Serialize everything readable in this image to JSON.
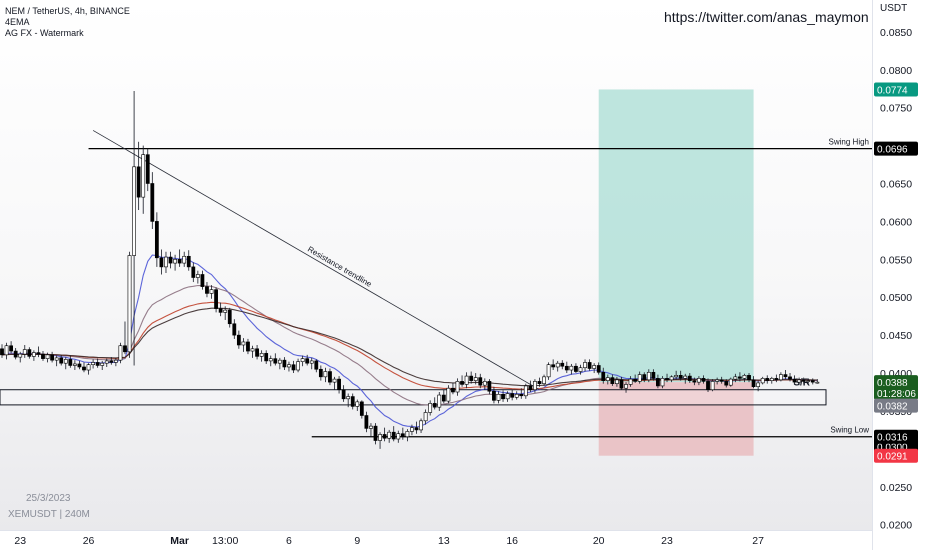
{
  "header": {
    "symbol_line": "NEM / TetherUS, 4h, BINANCE",
    "indicator_1": "4EMA",
    "indicator_2": "AG FX - Watermark"
  },
  "watermark": {
    "url": "https://twitter.com/anas_maymon",
    "date": "25/3/2023",
    "ticker": "XEMUSDT | 240M"
  },
  "colors": {
    "up": "#ffffff",
    "down": "#000000",
    "wick": "#131722",
    "target_zone": "#b3e0d8",
    "stop_zone": "#e8b9bd",
    "ema_fast": "#4b55d6",
    "ema_2": "#8c7080",
    "ema_3": "#c0412b",
    "ema_4": "#3a2a2a",
    "label_green": "#089981",
    "label_red": "#f23645",
    "label_gray": "#787b86",
    "label_black": "#000000",
    "label_darkgreen": "#1b5e20"
  },
  "chart_data": {
    "type": "candlestick",
    "symbol": "NEM / TetherUS",
    "interval": "4h",
    "exchange": "BINANCE",
    "y_unit": "USDT",
    "y_range": [
      0.0193,
      0.0892
    ],
    "y_ticks": [
      "0.0200",
      "0.0250",
      "0.0300",
      "0.0350",
      "0.0400",
      "0.0450",
      "0.0500",
      "0.0550",
      "0.0600",
      "0.0650",
      "0.0700",
      "0.0750",
      "0.0800",
      "0.0850"
    ],
    "x_ticks": [
      "23",
      "26",
      "Mar",
      "13:00",
      "6",
      "9",
      "13",
      "16",
      "20",
      "23",
      "27"
    ],
    "x_domain": [
      0,
      191
    ],
    "x_tick_positions": [
      4,
      19,
      39,
      49,
      63,
      78,
      97,
      112,
      131,
      146,
      166
    ],
    "price_labels": [
      {
        "text": "0.0774",
        "price": 0.0774,
        "color": "label_green"
      },
      {
        "text": "0.0696",
        "price": 0.0696,
        "color": "label_black"
      },
      {
        "text": "0.0388",
        "price": 0.0388,
        "color": "label_darkgreen"
      },
      {
        "text": "01:28:06",
        "price": 0.0374,
        "color": "label_darkgreen"
      },
      {
        "text": "0.0382",
        "price": 0.0357,
        "color": "label_gray"
      },
      {
        "text": "0.0300",
        "price": 0.0303,
        "color": "label_black"
      },
      {
        "text": "0.0316",
        "price": 0.0316,
        "color": "label_black"
      },
      {
        "text": "0.0291",
        "price": 0.0291,
        "color": "label_red"
      }
    ],
    "levels": [
      {
        "label": "Swing High",
        "price": 0.0696,
        "from": 19
      },
      {
        "label": "Swing Low",
        "price": 0.0316,
        "from": 68
      }
    ],
    "sr_zone": {
      "label": "S/R",
      "top": 0.0378,
      "bottom": 0.0358
    },
    "trendline": {
      "label": "Resistance trendline",
      "from": {
        "i": 20,
        "price": 0.072
      },
      "to": {
        "i": 118,
        "price": 0.0378
      }
    },
    "position": {
      "entry": 0.0388,
      "target": 0.0774,
      "stop": 0.0291,
      "from": 131,
      "to": 165
    },
    "candles": [
      [
        0.0432,
        0.0438,
        0.042,
        0.0424
      ],
      [
        0.0424,
        0.044,
        0.0418,
        0.0436
      ],
      [
        0.0436,
        0.0442,
        0.0426,
        0.0429
      ],
      [
        0.0429,
        0.0433,
        0.0418,
        0.0421
      ],
      [
        0.0421,
        0.0428,
        0.0414,
        0.0425
      ],
      [
        0.0425,
        0.0437,
        0.042,
        0.0431
      ],
      [
        0.0431,
        0.0434,
        0.0419,
        0.0422
      ],
      [
        0.0422,
        0.043,
        0.0416,
        0.0427
      ],
      [
        0.0427,
        0.0435,
        0.0421,
        0.0425
      ],
      [
        0.0425,
        0.0429,
        0.0416,
        0.0419
      ],
      [
        0.0419,
        0.0427,
        0.0414,
        0.0424
      ],
      [
        0.0424,
        0.0428,
        0.0414,
        0.0417
      ],
      [
        0.0417,
        0.0423,
        0.0409,
        0.042
      ],
      [
        0.042,
        0.0424,
        0.041,
        0.0413
      ],
      [
        0.0413,
        0.0421,
        0.0405,
        0.0418
      ],
      [
        0.0418,
        0.0423,
        0.0407,
        0.041
      ],
      [
        0.041,
        0.0417,
        0.0404,
        0.0412
      ],
      [
        0.0412,
        0.0416,
        0.0405,
        0.0408
      ],
      [
        0.0408,
        0.0414,
        0.0401,
        0.0404
      ],
      [
        0.0404,
        0.0413,
        0.0398,
        0.0411
      ],
      [
        0.0411,
        0.0418,
        0.0406,
        0.0414
      ],
      [
        0.0414,
        0.0419,
        0.0407,
        0.041
      ],
      [
        0.041,
        0.0416,
        0.0404,
        0.0413
      ],
      [
        0.0413,
        0.0419,
        0.0408,
        0.0416
      ],
      [
        0.0416,
        0.0421,
        0.0411,
        0.0414
      ],
      [
        0.0414,
        0.042,
        0.0409,
        0.0417
      ],
      [
        0.0417,
        0.044,
        0.0413,
        0.0436
      ],
      [
        0.0436,
        0.0468,
        0.0425,
        0.0428
      ],
      [
        0.0428,
        0.056,
        0.042,
        0.0555
      ],
      [
        0.0555,
        0.0772,
        0.041,
        0.0672
      ],
      [
        0.0672,
        0.0705,
        0.0615,
        0.0632
      ],
      [
        0.0632,
        0.07,
        0.061,
        0.0688
      ],
      [
        0.0688,
        0.0696,
        0.064,
        0.065
      ],
      [
        0.065,
        0.0665,
        0.059,
        0.06
      ],
      [
        0.06,
        0.0612,
        0.054,
        0.0552
      ],
      [
        0.0552,
        0.0563,
        0.053,
        0.054
      ],
      [
        0.054,
        0.056,
        0.0532,
        0.0553
      ],
      [
        0.0553,
        0.056,
        0.0538,
        0.0545
      ],
      [
        0.0545,
        0.0556,
        0.0535,
        0.055
      ],
      [
        0.055,
        0.0563,
        0.054,
        0.0545
      ],
      [
        0.0545,
        0.056,
        0.054,
        0.0554
      ],
      [
        0.0554,
        0.0562,
        0.0535,
        0.054
      ],
      [
        0.054,
        0.0546,
        0.052,
        0.0526
      ],
      [
        0.0526,
        0.0535,
        0.0518,
        0.053
      ],
      [
        0.053,
        0.0535,
        0.051,
        0.0514
      ],
      [
        0.0514,
        0.052,
        0.05,
        0.0505
      ],
      [
        0.0505,
        0.0516,
        0.0498,
        0.051
      ],
      [
        0.051,
        0.0513,
        0.048,
        0.0485
      ],
      [
        0.0485,
        0.0493,
        0.0475,
        0.048
      ],
      [
        0.048,
        0.0488,
        0.047,
        0.0483
      ],
      [
        0.0483,
        0.0486,
        0.046,
        0.0465
      ],
      [
        0.0465,
        0.0471,
        0.0445,
        0.045
      ],
      [
        0.045,
        0.0456,
        0.0432,
        0.0437
      ],
      [
        0.0437,
        0.0446,
        0.0428,
        0.0441
      ],
      [
        0.0441,
        0.0445,
        0.0425,
        0.0429
      ],
      [
        0.0429,
        0.0436,
        0.042,
        0.0432
      ],
      [
        0.0432,
        0.0437,
        0.0418,
        0.0422
      ],
      [
        0.0422,
        0.043,
        0.0415,
        0.0426
      ],
      [
        0.0426,
        0.043,
        0.0412,
        0.0416
      ],
      [
        0.0416,
        0.0423,
        0.0409,
        0.0419
      ],
      [
        0.0419,
        0.0426,
        0.041,
        0.0413
      ],
      [
        0.0413,
        0.042,
        0.0405,
        0.0417
      ],
      [
        0.0417,
        0.0421,
        0.0404,
        0.0408
      ],
      [
        0.0408,
        0.0415,
        0.0402,
        0.0411
      ],
      [
        0.0411,
        0.0416,
        0.04,
        0.0404
      ],
      [
        0.0404,
        0.0419,
        0.0401,
        0.0415
      ],
      [
        0.0415,
        0.0423,
        0.0409,
        0.0419
      ],
      [
        0.0419,
        0.0424,
        0.041,
        0.0413
      ],
      [
        0.0413,
        0.042,
        0.0405,
        0.0416
      ],
      [
        0.0416,
        0.0418,
        0.0401,
        0.0405
      ],
      [
        0.0405,
        0.041,
        0.039,
        0.0395
      ],
      [
        0.0395,
        0.0407,
        0.0388,
        0.0402
      ],
      [
        0.0402,
        0.0406,
        0.0384,
        0.0388
      ],
      [
        0.0388,
        0.0395,
        0.0378,
        0.0392
      ],
      [
        0.0392,
        0.0396,
        0.0373,
        0.0378
      ],
      [
        0.0378,
        0.0384,
        0.0362,
        0.0366
      ],
      [
        0.0366,
        0.0373,
        0.0355,
        0.0369
      ],
      [
        0.0369,
        0.0373,
        0.0352,
        0.0356
      ],
      [
        0.0356,
        0.0365,
        0.035,
        0.0362
      ],
      [
        0.0362,
        0.0364,
        0.034,
        0.0344
      ],
      [
        0.0344,
        0.0349,
        0.0322,
        0.0327
      ],
      [
        0.0327,
        0.0334,
        0.0316,
        0.033
      ],
      [
        0.033,
        0.0334,
        0.0306,
        0.0311
      ],
      [
        0.0311,
        0.0322,
        0.03,
        0.0319
      ],
      [
        0.0319,
        0.0328,
        0.031,
        0.0314
      ],
      [
        0.0314,
        0.0325,
        0.0308,
        0.0322
      ],
      [
        0.0322,
        0.033,
        0.031,
        0.0313
      ],
      [
        0.0313,
        0.0324,
        0.0308,
        0.032
      ],
      [
        0.032,
        0.0328,
        0.0312,
        0.0316
      ],
      [
        0.0316,
        0.0326,
        0.031,
        0.0323
      ],
      [
        0.0323,
        0.0332,
        0.0318,
        0.0328
      ],
      [
        0.0328,
        0.0336,
        0.032,
        0.0325
      ],
      [
        0.0325,
        0.034,
        0.0321,
        0.0337
      ],
      [
        0.0337,
        0.0352,
        0.0332,
        0.0348
      ],
      [
        0.0348,
        0.0364,
        0.0344,
        0.036
      ],
      [
        0.036,
        0.0368,
        0.0352,
        0.0355
      ],
      [
        0.0355,
        0.0375,
        0.035,
        0.0371
      ],
      [
        0.0371,
        0.0378,
        0.036,
        0.0363
      ],
      [
        0.0363,
        0.0384,
        0.036,
        0.038
      ],
      [
        0.038,
        0.0387,
        0.0372,
        0.0375
      ],
      [
        0.0375,
        0.0393,
        0.037,
        0.0389
      ],
      [
        0.0389,
        0.0397,
        0.0382,
        0.0385
      ],
      [
        0.0385,
        0.0401,
        0.038,
        0.0396
      ],
      [
        0.0396,
        0.0402,
        0.0386,
        0.039
      ],
      [
        0.039,
        0.04,
        0.0385,
        0.0394
      ],
      [
        0.0394,
        0.0399,
        0.038,
        0.0384
      ],
      [
        0.0384,
        0.0393,
        0.0378,
        0.0389
      ],
      [
        0.0389,
        0.0392,
        0.0372,
        0.0376
      ],
      [
        0.0376,
        0.0382,
        0.036,
        0.0364
      ],
      [
        0.0364,
        0.0376,
        0.036,
        0.0372
      ],
      [
        0.0372,
        0.0377,
        0.0362,
        0.0366
      ],
      [
        0.0366,
        0.0376,
        0.0362,
        0.0373
      ],
      [
        0.0373,
        0.0378,
        0.0364,
        0.0368
      ],
      [
        0.0368,
        0.0376,
        0.0365,
        0.0372
      ],
      [
        0.0372,
        0.038,
        0.0366,
        0.037
      ],
      [
        0.037,
        0.0386,
        0.0366,
        0.0383
      ],
      [
        0.0383,
        0.039,
        0.0375,
        0.0378
      ],
      [
        0.0378,
        0.0392,
        0.0374,
        0.0389
      ],
      [
        0.0389,
        0.0394,
        0.0382,
        0.0386
      ],
      [
        0.0386,
        0.0398,
        0.0383,
        0.0395
      ],
      [
        0.0395,
        0.0414,
        0.0391,
        0.0411
      ],
      [
        0.0411,
        0.0418,
        0.0404,
        0.0408
      ],
      [
        0.0408,
        0.0416,
        0.0402,
        0.0413
      ],
      [
        0.0413,
        0.0417,
        0.0405,
        0.0409
      ],
      [
        0.0409,
        0.0415,
        0.04,
        0.0404
      ],
      [
        0.0404,
        0.0412,
        0.0398,
        0.0409
      ],
      [
        0.0409,
        0.0413,
        0.04,
        0.0402
      ],
      [
        0.0402,
        0.0411,
        0.0398,
        0.0407
      ],
      [
        0.0407,
        0.0418,
        0.0402,
        0.0414
      ],
      [
        0.0414,
        0.0418,
        0.0403,
        0.0406
      ],
      [
        0.0406,
        0.0413,
        0.04,
        0.041
      ],
      [
        0.041,
        0.0414,
        0.0398,
        0.0401
      ],
      [
        0.0401,
        0.0407,
        0.0386,
        0.039
      ],
      [
        0.039,
        0.0398,
        0.0385,
        0.0394
      ],
      [
        0.0394,
        0.0398,
        0.0383,
        0.0386
      ],
      [
        0.0386,
        0.0395,
        0.0382,
        0.0391
      ],
      [
        0.0391,
        0.0395,
        0.0378,
        0.038
      ],
      [
        0.038,
        0.0388,
        0.0374,
        0.0385
      ],
      [
        0.0385,
        0.0396,
        0.0382,
        0.0392
      ],
      [
        0.0392,
        0.0398,
        0.0387,
        0.0389
      ],
      [
        0.0389,
        0.0402,
        0.0386,
        0.0398
      ],
      [
        0.0398,
        0.0401,
        0.0388,
        0.0391
      ],
      [
        0.0391,
        0.0405,
        0.0388,
        0.0401
      ],
      [
        0.0401,
        0.0405,
        0.039,
        0.0393
      ],
      [
        0.0393,
        0.0398,
        0.038,
        0.0383
      ],
      [
        0.0383,
        0.0396,
        0.038,
        0.0393
      ],
      [
        0.0393,
        0.0399,
        0.0388,
        0.0391
      ],
      [
        0.0391,
        0.0397,
        0.0388,
        0.0395
      ],
      [
        0.0395,
        0.0403,
        0.0391,
        0.0397
      ],
      [
        0.0397,
        0.0403,
        0.039,
        0.0393
      ],
      [
        0.0393,
        0.0399,
        0.0386,
        0.0396
      ],
      [
        0.0396,
        0.04,
        0.0387,
        0.039
      ],
      [
        0.039,
        0.0394,
        0.0384,
        0.0388
      ],
      [
        0.0388,
        0.0396,
        0.0384,
        0.0393
      ],
      [
        0.0393,
        0.0397,
        0.0386,
        0.0389
      ],
      [
        0.0389,
        0.0393,
        0.0375,
        0.0378
      ],
      [
        0.0378,
        0.0392,
        0.0376,
        0.0389
      ],
      [
        0.0389,
        0.0394,
        0.0385,
        0.0391
      ],
      [
        0.0391,
        0.0395,
        0.0386,
        0.0389
      ],
      [
        0.0389,
        0.0392,
        0.0381,
        0.0384
      ],
      [
        0.0384,
        0.0394,
        0.0382,
        0.0392
      ],
      [
        0.0392,
        0.0399,
        0.0388,
        0.0395
      ],
      [
        0.0395,
        0.0401,
        0.0389,
        0.0393
      ],
      [
        0.0393,
        0.0399,
        0.0388,
        0.0397
      ],
      [
        0.0397,
        0.04,
        0.0388,
        0.0391
      ],
      [
        0.0391,
        0.0396,
        0.038,
        0.0382
      ],
      [
        0.0382,
        0.039,
        0.0376,
        0.0387
      ],
      [
        0.0387,
        0.0395,
        0.0385,
        0.0393
      ],
      [
        0.0393,
        0.0397,
        0.0386,
        0.039
      ],
      [
        0.039,
        0.0395,
        0.0386,
        0.0393
      ],
      [
        0.0393,
        0.0398,
        0.0388,
        0.0391
      ],
      [
        0.0391,
        0.0401,
        0.0389,
        0.0398
      ],
      [
        0.0398,
        0.0404,
        0.0392,
        0.0395
      ],
      [
        0.0395,
        0.04,
        0.0389,
        0.0392
      ],
      [
        0.0392,
        0.0397,
        0.0385,
        0.0388
      ],
      [
        0.0388,
        0.0394,
        0.0384,
        0.0391
      ],
      [
        0.0391,
        0.0394,
        0.0386,
        0.0389
      ],
      [
        0.0389,
        0.0393,
        0.0385,
        0.039
      ],
      [
        0.039,
        0.0393,
        0.0385,
        0.0388
      ],
      [
        0.0388,
        0.0392,
        0.0386,
        0.0388
      ]
    ]
  }
}
